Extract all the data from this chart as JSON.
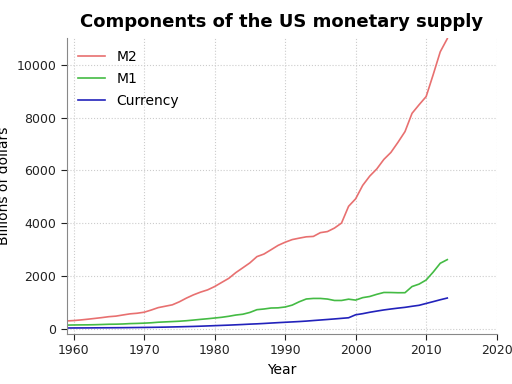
{
  "title": "Components of the US monetary supply",
  "xlabel": "Year",
  "ylabel": "Billions of dollars",
  "xlim": [
    1959,
    2020
  ],
  "ylim": [
    -200,
    11000
  ],
  "yticks": [
    0,
    2000,
    4000,
    6000,
    8000,
    10000
  ],
  "xticks": [
    1960,
    1970,
    1980,
    1990,
    2000,
    2010,
    2020
  ],
  "years": [
    1959,
    1960,
    1961,
    1962,
    1963,
    1964,
    1965,
    1966,
    1967,
    1968,
    1969,
    1970,
    1971,
    1972,
    1973,
    1974,
    1975,
    1976,
    1977,
    1978,
    1979,
    1980,
    1981,
    1982,
    1983,
    1984,
    1985,
    1986,
    1987,
    1988,
    1989,
    1990,
    1991,
    1992,
    1993,
    1994,
    1995,
    1996,
    1997,
    1998,
    1999,
    2000,
    2001,
    2002,
    2003,
    2004,
    2005,
    2006,
    2007,
    2008,
    2009,
    2010,
    2011,
    2012,
    2013
  ],
  "M2": [
    297,
    312,
    335,
    363,
    393,
    424,
    459,
    480,
    524,
    566,
    589,
    628,
    710,
    802,
    855,
    908,
    1023,
    1163,
    1286,
    1389,
    1474,
    1600,
    1756,
    1910,
    2127,
    2311,
    2497,
    2734,
    2832,
    2994,
    3159,
    3279,
    3379,
    3434,
    3484,
    3499,
    3642,
    3683,
    3816,
    4006,
    4640,
    4924,
    5432,
    5784,
    6055,
    6415,
    6680,
    7062,
    7469,
    8162,
    8487,
    8796,
    9627,
    10492,
    10990
  ],
  "M1_full": [
    140,
    145,
    148,
    150,
    155,
    163,
    172,
    175,
    183,
    197,
    204,
    214,
    228,
    249,
    262,
    274,
    287,
    306,
    331,
    357,
    381,
    408,
    436,
    474,
    521,
    552,
    620,
    724,
    750,
    787,
    794,
    826,
    897,
    1024,
    1129,
    1150,
    1150,
    1127,
    1073,
    1073,
    1122,
    1087,
    1180,
    1224,
    1306,
    1376,
    1374,
    1366,
    1367,
    1601,
    1693,
    1848,
    2148,
    2482,
    2620
  ],
  "Currency_full": [
    30,
    32,
    33,
    34,
    36,
    38,
    39,
    41,
    43,
    46,
    49,
    52,
    55,
    59,
    64,
    70,
    76,
    83,
    90,
    99,
    109,
    119,
    129,
    139,
    151,
    163,
    177,
    188,
    202,
    218,
    233,
    247,
    261,
    275,
    292,
    313,
    333,
    353,
    374,
    396,
    418,
    531,
    573,
    626,
    671,
    714,
    750,
    783,
    813,
    853,
    890,
    960,
    1029,
    1100,
    1165
  ],
  "M2_color": "#e87070",
  "M1_color": "#44bb44",
  "Currency_color": "#2222bb",
  "bg_color": "#ffffff",
  "grid_color": "#cccccc",
  "title_fontsize": 13,
  "axis_fontsize": 10,
  "tick_fontsize": 9,
  "legend_fontsize": 10
}
